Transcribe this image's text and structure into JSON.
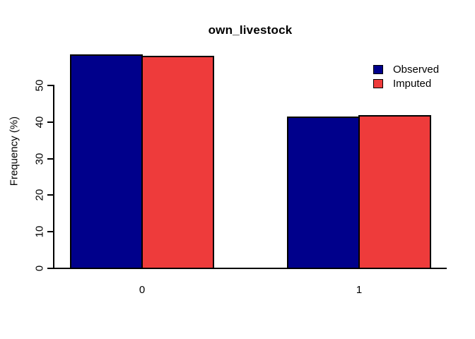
{
  "chart_data": {
    "type": "bar",
    "title": "own_livestock",
    "xlabel": "",
    "ylabel": "Frequency (%)",
    "categories": [
      "0",
      "1"
    ],
    "series": [
      {
        "name": "Observed",
        "color": "#00008B",
        "values": [
          58.4,
          41.6
        ]
      },
      {
        "name": "Imputed",
        "color": "#EE3B3B",
        "values": [
          58.1,
          41.9
        ]
      }
    ],
    "yticks": [
      0,
      10,
      20,
      30,
      40,
      50
    ],
    "ylim": [
      0,
      60
    ],
    "grid": false,
    "legend_position": "top-right",
    "bar_border_color": "#000000",
    "background_color": "#FFFFFF"
  }
}
